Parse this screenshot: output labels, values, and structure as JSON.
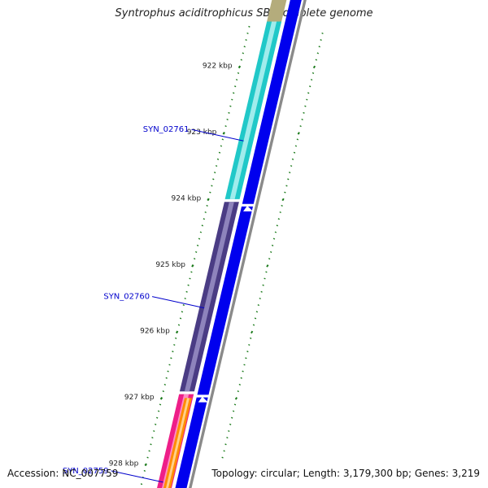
{
  "title": "Syntrophus aciditrophicus SB, complete genome",
  "footer": {
    "accession": "Accession: NC_007759",
    "topology": "Topology: circular; Length: 3,179,300 bp; Genes: 3,219"
  },
  "map": {
    "ticks": [
      {
        "label": "922 kbp",
        "value": 922
      },
      {
        "label": "923 kbp",
        "value": 923
      },
      {
        "label": "924 kbp",
        "value": 924
      },
      {
        "label": "925 kbp",
        "value": 925
      },
      {
        "label": "926 kbp",
        "value": 926
      },
      {
        "label": "927 kbp",
        "value": 927
      },
      {
        "label": "928 kbp",
        "value": 928
      }
    ],
    "genes": [
      {
        "id": "SYN_02761",
        "start": 921.35,
        "end": 924.03,
        "color": "#20c8c8",
        "highlight": "#a0ecec",
        "strand": "reverse",
        "label": "SYN_02761",
        "label_at": 923.15
      },
      {
        "id": "SYN_02760",
        "start": 924.07,
        "end": 926.93,
        "color": "#4a3c84",
        "highlight": "#8e84bc",
        "strand": "reverse",
        "label": "SYN_02760",
        "label_at": 925.67
      },
      {
        "id": "SYN_02759",
        "start": 926.97,
        "end": 928.75,
        "color": "#ee1e88",
        "highlight": "#ff8cc4",
        "strand": "reverse",
        "label": "SYN_02759",
        "label_at": 928.3
      }
    ],
    "overlay_genes": [
      {
        "id": "orange-gene",
        "start": 927.03,
        "end": 928.75,
        "color": "#ff8c00",
        "highlight": "#ffd08a"
      }
    ],
    "top_stub": {
      "start": 921.0,
      "end": 921.35,
      "color": "#b4ac7c"
    },
    "cds": [
      {
        "start": 921.0,
        "end": 924.1,
        "color": "#0000ee"
      },
      {
        "start": 924.14,
        "end": 926.98,
        "color": "#0000ee"
      },
      {
        "start": 927.02,
        "end": 928.8,
        "color": "#0000ee"
      }
    ],
    "backbone_color": "#8a8a8a",
    "tick_color": "#1a7a1a",
    "label_color": "#0000cc",
    "range": [
      921.0,
      928.8
    ]
  }
}
